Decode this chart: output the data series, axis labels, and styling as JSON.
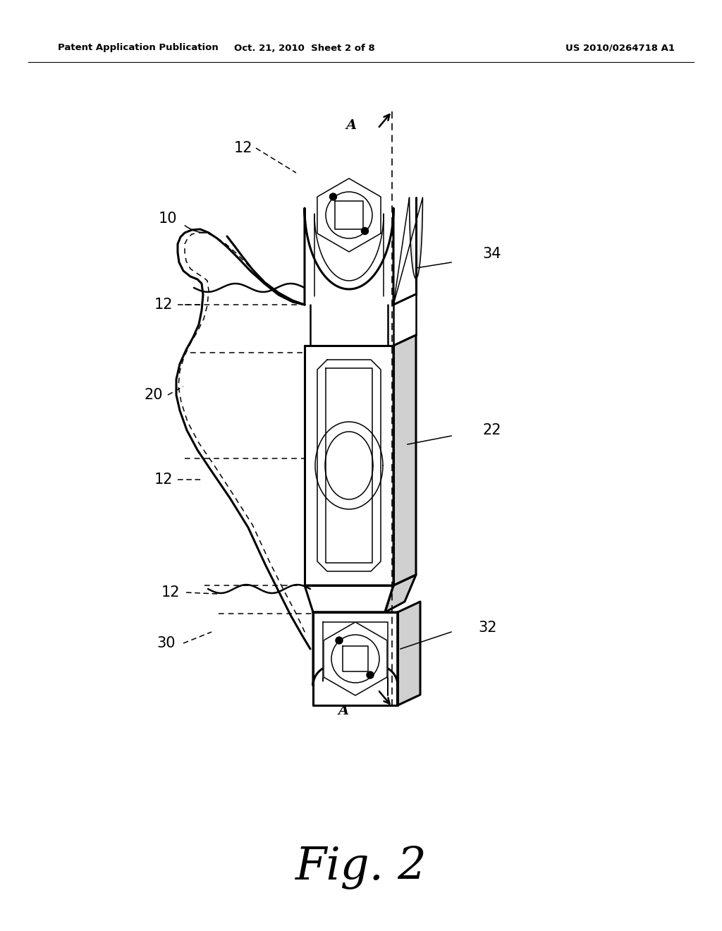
{
  "bg_color": "#ffffff",
  "line_color": "#000000",
  "header_left": "Patent Application Publication",
  "header_mid": "Oct. 21, 2010  Sheet 2 of 8",
  "header_right": "US 2010/0264718 A1",
  "fig_label": "Fig. 2",
  "lw_main": 1.8,
  "lw_thin": 1.1,
  "lw_thick": 2.2
}
